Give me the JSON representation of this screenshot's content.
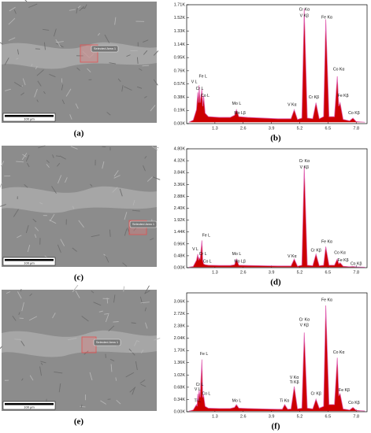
{
  "images": [
    {
      "label": "(a)",
      "selection": "Selected Area 1",
      "scale": "100 μm"
    },
    {
      "label": "(c)",
      "selection": "Selected Area 1",
      "scale": "100 μm"
    },
    {
      "label": "(e)",
      "selection": "Selected Area 1",
      "scale": "100 μm"
    }
  ],
  "chart_data": [
    {
      "type": "area",
      "panel_label": "(b)",
      "color": "#cc0000",
      "edge_color": "#e060b0",
      "x": [
        0.1,
        0.3,
        0.45,
        0.51,
        0.55,
        0.57,
        0.62,
        0.7,
        0.74,
        0.78,
        0.85,
        1.0,
        1.5,
        2.0,
        2.2,
        2.29,
        2.4,
        2.8,
        3.5,
        4.2,
        4.8,
        4.95,
        5.1,
        5.3,
        5.41,
        5.55,
        5.8,
        5.95,
        6.1,
        6.3,
        6.4,
        6.55,
        6.8,
        6.93,
        7.0,
        7.06,
        7.2,
        7.5,
        7.65,
        7.8,
        8.2
      ],
      "values": [
        0.02,
        0.05,
        0.2,
        0.45,
        0.3,
        0.55,
        0.3,
        0.5,
        0.25,
        0.4,
        0.15,
        0.1,
        0.09,
        0.09,
        0.12,
        0.2,
        0.1,
        0.09,
        0.08,
        0.07,
        0.07,
        0.2,
        0.06,
        0.08,
        1.65,
        0.08,
        0.07,
        0.3,
        0.07,
        0.1,
        1.5,
        0.1,
        0.1,
        0.68,
        0.25,
        0.3,
        0.06,
        0.04,
        0.08,
        0.03,
        0.02
      ],
      "xlim": [
        0,
        8.3
      ],
      "xticks": [
        1.3,
        2.6,
        3.9,
        5.2,
        6.5,
        7.8
      ],
      "ylim": [
        0,
        1.71
      ],
      "yticks": [
        {
          "value": 0,
          "label": "0.00K"
        },
        {
          "value": 0.19,
          "label": "0.19K"
        },
        {
          "value": 0.38,
          "label": "0.38K"
        },
        {
          "value": 0.57,
          "label": "0.57K"
        },
        {
          "value": 0.76,
          "label": "0.76K"
        },
        {
          "value": 0.95,
          "label": "0.95K"
        },
        {
          "value": 1.14,
          "label": "1.14K"
        },
        {
          "value": 1.33,
          "label": "1.33K"
        },
        {
          "value": 1.52,
          "label": "1.52K"
        },
        {
          "value": 1.71,
          "label": "1.71K"
        }
      ],
      "annotations": [
        {
          "text": "V L",
          "x": 0.35,
          "y": 0.6
        },
        {
          "text": "Fe L",
          "x": 0.75,
          "y": 0.68
        },
        {
          "text": "Cr L",
          "x": 0.6,
          "y": 0.5
        },
        {
          "text": "Co L",
          "x": 0.85,
          "y": 0.4
        },
        {
          "text": "Mo L",
          "x": 2.3,
          "y": 0.29
        },
        {
          "text": "Mo Lβ",
          "x": 2.45,
          "y": 0.15
        },
        {
          "text": "V  Kα",
          "x": 4.85,
          "y": 0.27
        },
        {
          "text": "Cr Kα",
          "x": 5.41,
          "y": 1.64
        },
        {
          "text": "V  Kβ",
          "x": 5.41,
          "y": 1.55
        },
        {
          "text": "Cr Kβ",
          "x": 5.85,
          "y": 0.38
        },
        {
          "text": "Fe Kα",
          "x": 6.45,
          "y": 1.53
        },
        {
          "text": "Co Kα",
          "x": 7.0,
          "y": 0.78
        },
        {
          "text": "Fe Kβ",
          "x": 7.2,
          "y": 0.4
        },
        {
          "text": "Co Kβ",
          "x": 7.7,
          "y": 0.15
        }
      ]
    },
    {
      "type": "area",
      "panel_label": "(d)",
      "color": "#cc0000",
      "edge_color": "#e060b0",
      "x": [
        0.1,
        0.3,
        0.45,
        0.51,
        0.55,
        0.57,
        0.62,
        0.7,
        0.74,
        0.78,
        0.85,
        1.0,
        1.5,
        2.0,
        2.2,
        2.29,
        2.4,
        2.8,
        3.5,
        4.2,
        4.8,
        4.95,
        5.1,
        5.3,
        5.41,
        5.55,
        5.8,
        5.95,
        6.1,
        6.3,
        6.4,
        6.55,
        6.8,
        6.93,
        7.0,
        7.06,
        7.2,
        7.5,
        7.65,
        7.8,
        8.2
      ],
      "values": [
        0.02,
        0.05,
        0.3,
        0.55,
        0.3,
        0.4,
        0.35,
        1.1,
        0.3,
        0.15,
        0.12,
        0.1,
        0.09,
        0.09,
        0.12,
        0.35,
        0.1,
        0.09,
        0.08,
        0.07,
        0.07,
        0.35,
        0.06,
        0.1,
        4.1,
        0.1,
        0.08,
        0.55,
        0.08,
        0.1,
        0.85,
        0.1,
        0.1,
        0.35,
        0.15,
        0.2,
        0.06,
        0.04,
        0.05,
        0.03,
        0.02
      ],
      "xlim": [
        0,
        8.3
      ],
      "xticks": [
        1.3,
        2.6,
        3.9,
        5.2,
        6.5,
        7.8
      ],
      "ylim": [
        0,
        4.8
      ],
      "yticks": [
        {
          "value": 0,
          "label": "0.00K"
        },
        {
          "value": 0.48,
          "label": "0.48K"
        },
        {
          "value": 0.96,
          "label": "0.96K"
        },
        {
          "value": 1.44,
          "label": "1.44K"
        },
        {
          "value": 1.92,
          "label": "1.92K"
        },
        {
          "value": 2.4,
          "label": "2.40K"
        },
        {
          "value": 2.88,
          "label": "2.88K"
        },
        {
          "value": 3.36,
          "label": "3.36K"
        },
        {
          "value": 3.84,
          "label": "3.84K"
        },
        {
          "value": 4.32,
          "label": "4.32K"
        },
        {
          "value": 4.8,
          "label": "4.80K"
        }
      ],
      "annotations": [
        {
          "text": "Fe L",
          "x": 0.9,
          "y": 1.3
        },
        {
          "text": "V L",
          "x": 0.4,
          "y": 0.75
        },
        {
          "text": "Cr L",
          "x": 0.75,
          "y": 0.55
        },
        {
          "text": "Co L",
          "x": 0.95,
          "y": 0.25
        },
        {
          "text": "Mo L",
          "x": 2.3,
          "y": 0.55
        },
        {
          "text": "Mo Lβ",
          "x": 2.45,
          "y": 0.25
        },
        {
          "text": "V  Kα",
          "x": 4.85,
          "y": 0.45
        },
        {
          "text": "Cr Kα",
          "x": 5.41,
          "y": 4.3
        },
        {
          "text": "V  Kβ",
          "x": 5.41,
          "y": 4.05
        },
        {
          "text": "Cr Kβ",
          "x": 5.95,
          "y": 0.7
        },
        {
          "text": "Fe Kα",
          "x": 6.45,
          "y": 1.05
        },
        {
          "text": "Co Kα",
          "x": 7.05,
          "y": 0.6
        },
        {
          "text": "Fe Kβ",
          "x": 7.2,
          "y": 0.3
        },
        {
          "text": "Co Kβ",
          "x": 7.8,
          "y": 0.15
        }
      ]
    },
    {
      "type": "area",
      "panel_label": "(f)",
      "color": "#cc0000",
      "edge_color": "#e060b0",
      "x": [
        0.1,
        0.3,
        0.45,
        0.48,
        0.51,
        0.54,
        0.57,
        0.62,
        0.7,
        0.74,
        0.78,
        0.85,
        1.0,
        1.5,
        2.0,
        2.2,
        2.29,
        2.4,
        2.8,
        3.5,
        4.2,
        4.4,
        4.51,
        4.65,
        4.8,
        4.95,
        5.1,
        5.3,
        5.41,
        5.55,
        5.8,
        5.95,
        6.1,
        6.3,
        6.4,
        6.55,
        6.8,
        6.93,
        7.0,
        7.06,
        7.2,
        7.5,
        7.65,
        7.8,
        8.2
      ],
      "values": [
        0.02,
        0.05,
        0.2,
        0.15,
        0.5,
        0.3,
        0.6,
        0.4,
        1.45,
        0.4,
        0.45,
        0.15,
        0.1,
        0.09,
        0.09,
        0.12,
        0.2,
        0.1,
        0.09,
        0.08,
        0.07,
        0.07,
        0.2,
        0.07,
        0.08,
        0.7,
        0.08,
        0.1,
        2.2,
        0.1,
        0.08,
        0.35,
        0.1,
        0.15,
        2.95,
        0.2,
        0.2,
        1.5,
        0.45,
        0.5,
        0.08,
        0.05,
        0.12,
        0.04,
        0.02
      ],
      "xlim": [
        0,
        8.3
      ],
      "xticks": [
        1.3,
        2.6,
        3.9,
        5.2,
        6.5,
        7.8
      ],
      "ylim": [
        0,
        3.3
      ],
      "yticks": [
        {
          "value": 0,
          "label": "0.00K"
        },
        {
          "value": 0.34,
          "label": "0.34K"
        },
        {
          "value": 0.68,
          "label": "0.68K"
        },
        {
          "value": 1.02,
          "label": "1.02K"
        },
        {
          "value": 1.36,
          "label": "1.36K"
        },
        {
          "value": 1.7,
          "label": "1.70K"
        },
        {
          "value": 2.04,
          "label": "2.04K"
        },
        {
          "value": 2.38,
          "label": "2.38K"
        },
        {
          "value": 2.72,
          "label": "2.72K"
        },
        {
          "value": 3.06,
          "label": "3.06K"
        }
      ],
      "annotations": [
        {
          "text": "Fe L",
          "x": 0.8,
          "y": 1.6
        },
        {
          "text": "Cr L",
          "x": 0.6,
          "y": 0.75
        },
        {
          "text": "V L",
          "x": 0.5,
          "y": 0.62
        },
        {
          "text": "Co L",
          "x": 0.9,
          "y": 0.5
        },
        {
          "text": "Ti L",
          "x": 0.5,
          "y": 0.3
        },
        {
          "text": "Mo L",
          "x": 2.3,
          "y": 0.3
        },
        {
          "text": "Ti Kα",
          "x": 4.5,
          "y": 0.3
        },
        {
          "text": "V  Kα",
          "x": 4.95,
          "y": 0.95
        },
        {
          "text": "Ti Kβ",
          "x": 4.95,
          "y": 0.82
        },
        {
          "text": "Cr Kα",
          "x": 5.41,
          "y": 2.55
        },
        {
          "text": "V  Kβ",
          "x": 5.41,
          "y": 2.4
        },
        {
          "text": "Cr Kβ",
          "x": 5.95,
          "y": 0.5
        },
        {
          "text": "Fe Kα",
          "x": 6.45,
          "y": 3.1
        },
        {
          "text": "Co Kα",
          "x": 7.0,
          "y": 1.65
        },
        {
          "text": "Fe Kβ",
          "x": 7.25,
          "y": 0.6
        },
        {
          "text": "Co Kβ",
          "x": 7.7,
          "y": 0.25
        }
      ]
    }
  ]
}
